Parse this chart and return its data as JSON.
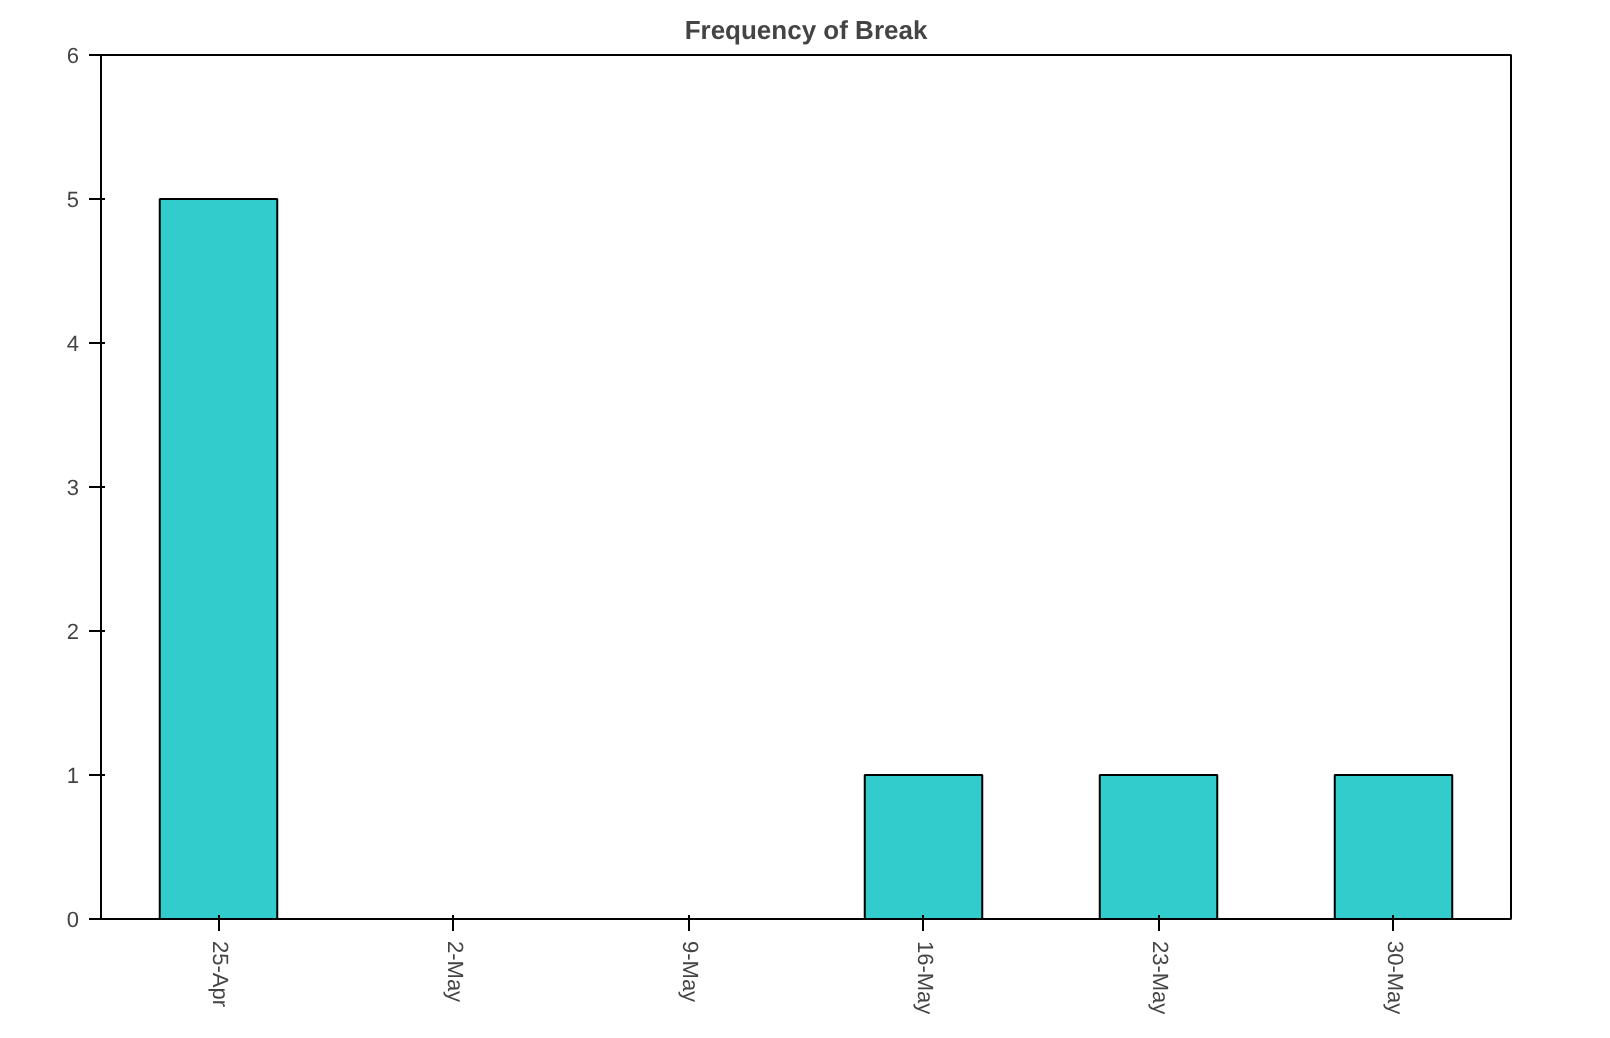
{
  "chart_data": {
    "type": "bar",
    "title": "Frequency of Break",
    "categories": [
      "25-Apr",
      "2-May",
      "9-May",
      "16-May",
      "23-May",
      "30-May"
    ],
    "values": [
      5,
      0,
      0,
      1,
      1,
      1
    ],
    "color": "#33cccc",
    "ylim": [
      0,
      6
    ],
    "yticks": [
      0,
      1,
      2,
      3,
      4,
      5,
      6
    ],
    "grid": false
  }
}
